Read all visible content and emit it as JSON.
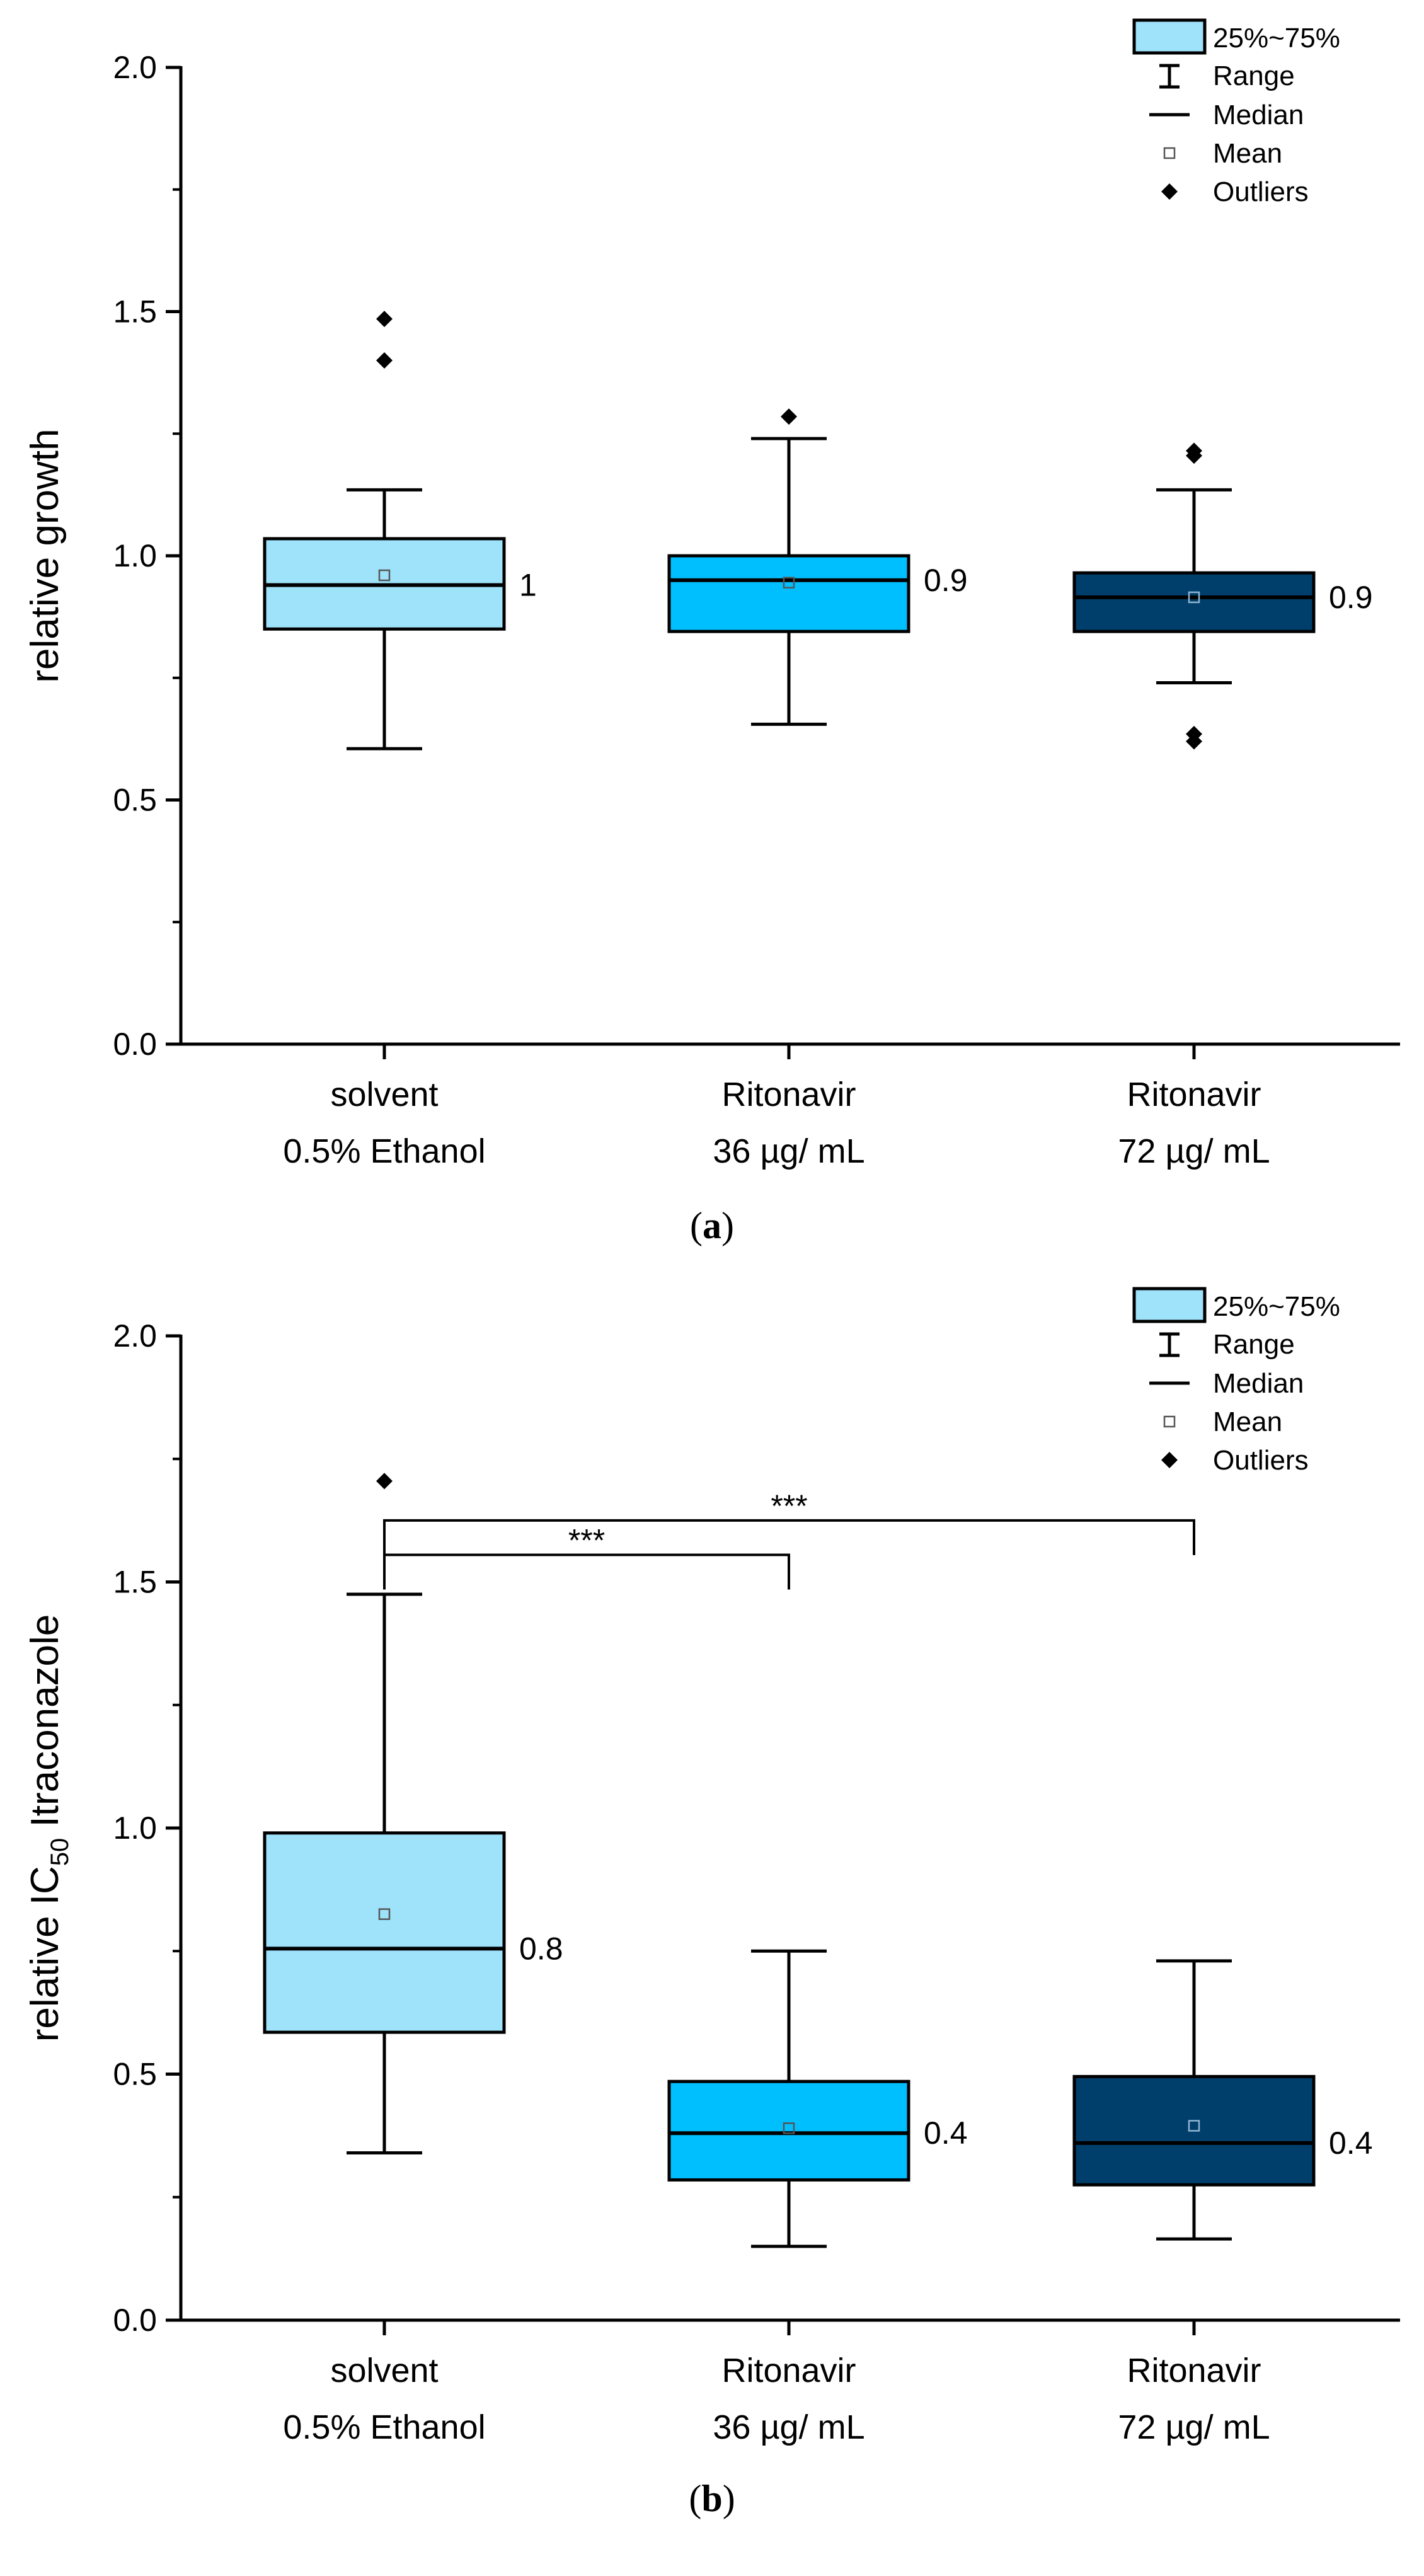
{
  "chart_data": [
    {
      "type": "box",
      "panel_label": "a",
      "ylabel": "relative growth",
      "ylabel_main": "",
      "ylabel_sub": "",
      "ylabel_tail": "",
      "ylim": [
        0,
        2.0
      ],
      "yticks": [
        "0.0",
        "0.5",
        "1.0",
        "1.5",
        "2.0"
      ],
      "categories": [
        {
          "line1": "solvent",
          "line2": "0.5% Ethanol"
        },
        {
          "line1": "Ritonavir",
          "line2": "36 µg/ mL"
        },
        {
          "line1": "Ritonavir",
          "line2": "72 µg/ mL"
        }
      ],
      "boxes": [
        {
          "q1": 0.85,
          "median": 0.94,
          "q3": 1.035,
          "whisker_low": 0.605,
          "whisker_high": 1.135,
          "mean": 0.96,
          "outliers": [
            1.4,
            1.485
          ],
          "label": "1",
          "color": "#9fe3fb"
        },
        {
          "q1": 0.845,
          "median": 0.95,
          "q3": 1.0,
          "whisker_low": 0.655,
          "whisker_high": 1.24,
          "mean": 0.945,
          "outliers": [
            1.285
          ],
          "label": "0.9",
          "color": "#00bfff"
        },
        {
          "q1": 0.845,
          "median": 0.915,
          "q3": 0.965,
          "whisker_low": 0.74,
          "whisker_high": 1.135,
          "mean": 0.915,
          "outliers": [
            0.62,
            0.635,
            1.205,
            1.215
          ],
          "label": "0.9",
          "color": "#003f6b"
        }
      ],
      "significance": []
    },
    {
      "type": "box",
      "panel_label": "b",
      "ylabel": "",
      "ylabel_main": "relative IC",
      "ylabel_sub": "50",
      "ylabel_tail": " Itraconazole",
      "ylim": [
        0,
        2.0
      ],
      "yticks": [
        "0.0",
        "0.5",
        "1.0",
        "1.5",
        "2.0"
      ],
      "categories": [
        {
          "line1": "solvent",
          "line2": "0.5% Ethanol"
        },
        {
          "line1": "Ritonavir",
          "line2": "36 µg/ mL"
        },
        {
          "line1": "Ritonavir",
          "line2": "72 µg/ mL"
        }
      ],
      "boxes": [
        {
          "q1": 0.585,
          "median": 0.755,
          "q3": 0.99,
          "whisker_low": 0.34,
          "whisker_high": 1.475,
          "mean": 0.825,
          "outliers": [
            1.705
          ],
          "label": "0.8",
          "color": "#9fe3fb"
        },
        {
          "q1": 0.285,
          "median": 0.38,
          "q3": 0.485,
          "whisker_low": 0.15,
          "whisker_high": 0.75,
          "mean": 0.39,
          "outliers": [],
          "label": "0.4",
          "color": "#00bfff"
        },
        {
          "q1": 0.275,
          "median": 0.36,
          "q3": 0.495,
          "whisker_low": 0.165,
          "whisker_high": 0.73,
          "mean": 0.395,
          "outliers": [],
          "label": "0.4",
          "color": "#003f6b"
        }
      ],
      "significance": [
        {
          "from": 0,
          "to": 1,
          "y": 1.555,
          "text": "***"
        },
        {
          "from": 0,
          "to": 2,
          "y": 1.625,
          "text": "***"
        }
      ]
    }
  ],
  "legend": {
    "box": "25%~75%",
    "range": "Range",
    "median": "Median",
    "mean": "Mean",
    "outliers": "Outliers",
    "box_color": "#9fe3fb"
  },
  "colors": {
    "solvent": "#9fe3fb",
    "ritonavir_36": "#00bfff",
    "ritonavir_72": "#003f6b"
  }
}
